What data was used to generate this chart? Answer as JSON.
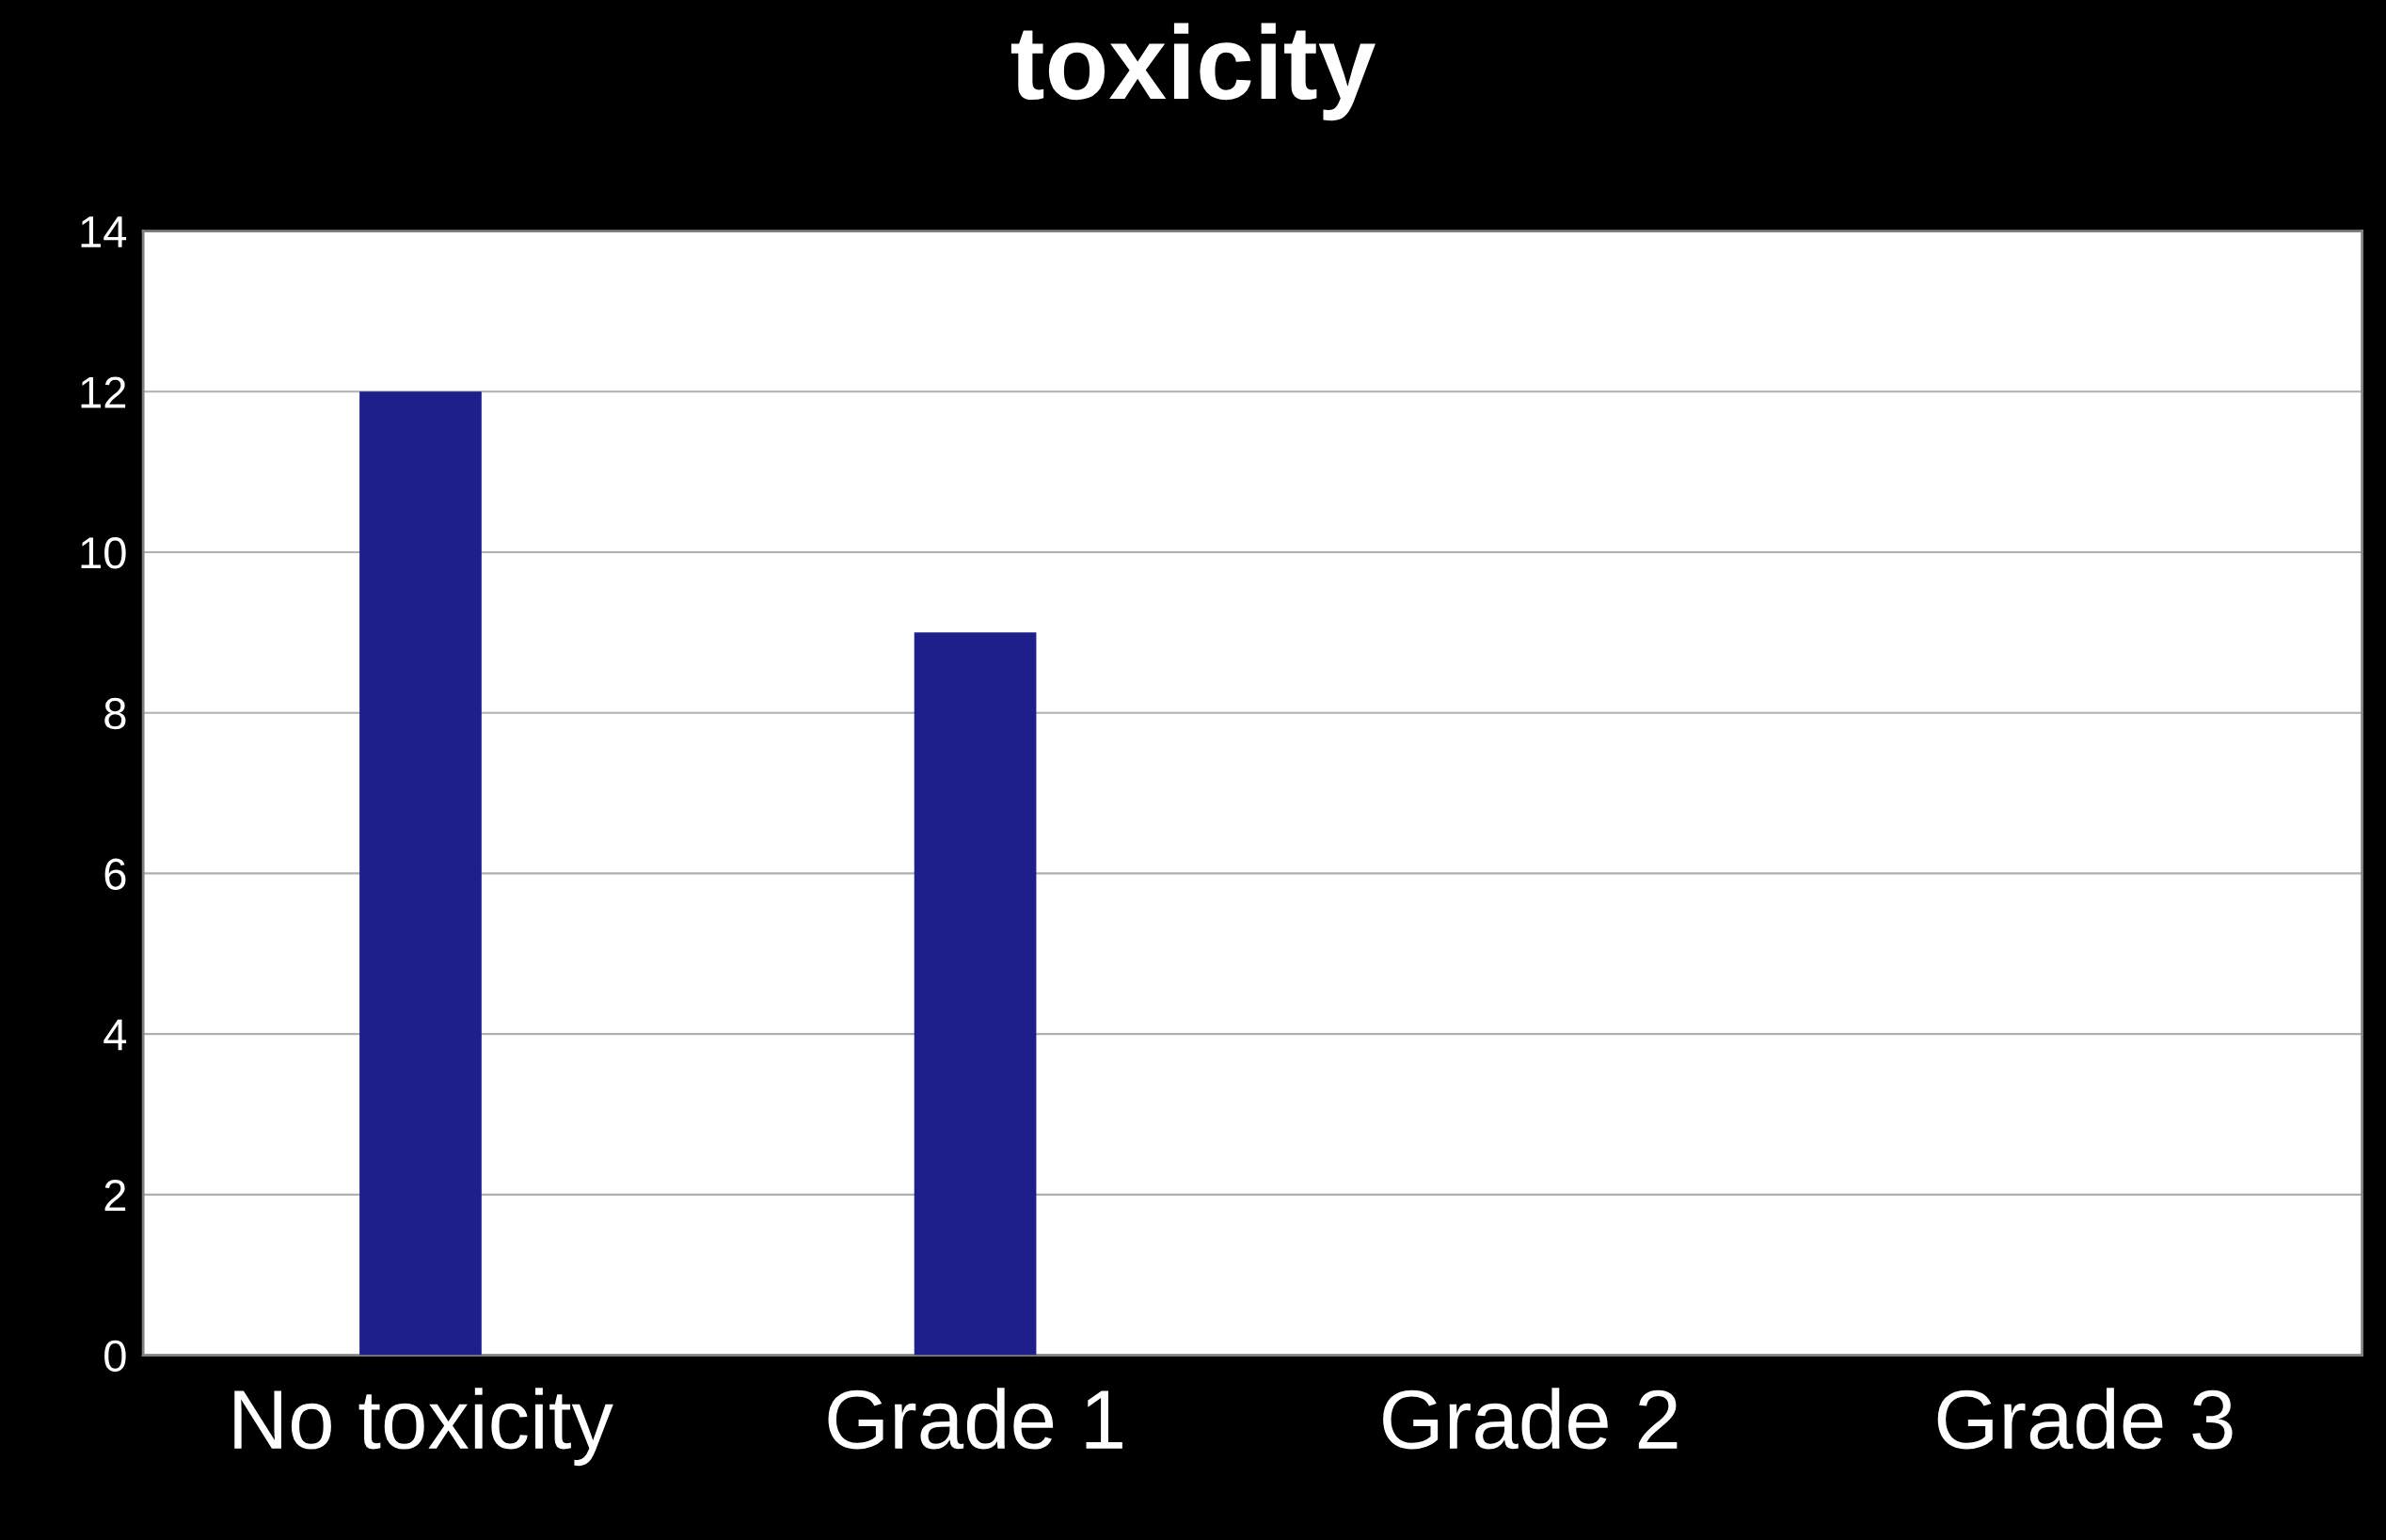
{
  "chart_data": {
    "type": "bar",
    "title": "toxicity",
    "categories": [
      "No toxicity",
      "Grade 1",
      "Grade 2",
      "Grade 3"
    ],
    "values": [
      12,
      9,
      0,
      0
    ],
    "color": "#1f1f8c",
    "ylim": [
      0,
      14
    ],
    "yticks": [
      0,
      2,
      4,
      6,
      8,
      10,
      12,
      14
    ],
    "grid": "y",
    "legend": false
  }
}
